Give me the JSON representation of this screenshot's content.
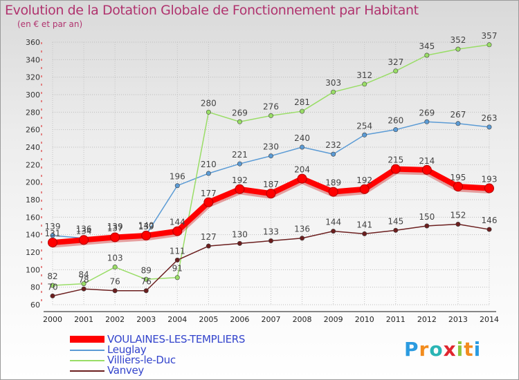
{
  "header": {
    "title": "Evolution de la Dotation Globale de Fonctionnement par Habitant",
    "subtitle": "(en € et par an)"
  },
  "chart_data": {
    "type": "line",
    "title": "Evolution de la Dotation Globale de Fonctionnement par Habitant",
    "ylabel": "(en € et par an)",
    "xlabel": "",
    "x": [
      "2000",
      "2001",
      "2002",
      "2003",
      "2004",
      "2005",
      "2006",
      "2007",
      "2008",
      "2009",
      "2010",
      "2011",
      "2012",
      "2013",
      "2014"
    ],
    "ylim": [
      60,
      360
    ],
    "yticks": [
      60,
      80,
      100,
      120,
      140,
      160,
      180,
      200,
      220,
      240,
      260,
      280,
      300,
      320,
      340,
      360
    ],
    "grid": true,
    "legend_position": "bottom-left",
    "series": [
      {
        "name": "VOULAINES-LES-TEMPLIERS",
        "color": "#ff0000",
        "values": [
          131,
          134,
          137,
          139,
          144,
          177,
          192,
          187,
          204,
          189,
          192,
          215,
          214,
          195,
          193
        ]
      },
      {
        "name": "Leuglay",
        "color": "#5b9bd5",
        "values": [
          139,
          136,
          139,
          140,
          196,
          210,
          221,
          230,
          240,
          232,
          254,
          260,
          269,
          267,
          263
        ]
      },
      {
        "name": "Villiers-le-Duc",
        "color": "#99dd66",
        "values": [
          82,
          84,
          103,
          89,
          91,
          280,
          269,
          276,
          281,
          303,
          312,
          327,
          345,
          352,
          357
        ]
      },
      {
        "name": "Vanvey",
        "color": "#6b1e1e",
        "values": [
          70,
          78,
          76,
          76,
          111,
          127,
          130,
          133,
          136,
          144,
          141,
          145,
          150,
          152,
          146
        ]
      }
    ]
  },
  "logo": {
    "letters": [
      "P",
      "r",
      "o",
      "x",
      "i",
      "t",
      "i"
    ],
    "colors": [
      "#2b9be0",
      "#f28c1e",
      "#2bb5b5",
      "#e0262f",
      "#8cc63f",
      "#f28c1e",
      "#2b9be0"
    ]
  }
}
